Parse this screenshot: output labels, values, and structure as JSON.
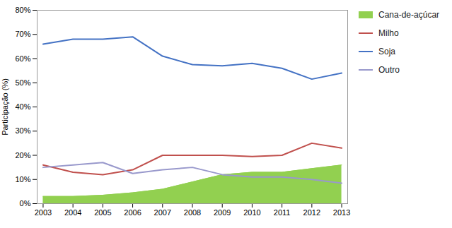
{
  "chart_data": {
    "type": "line",
    "ylabel": "Participação (%)",
    "x": [
      2003,
      2004,
      2005,
      2006,
      2007,
      2008,
      2009,
      2010,
      2011,
      2012,
      2013
    ],
    "series": [
      {
        "name": "Cana-de-açúcar",
        "type": "area",
        "color": "#92D050",
        "values": [
          3,
          3,
          3.5,
          4.5,
          6,
          9,
          12,
          13,
          13,
          14.5,
          16
        ]
      },
      {
        "name": "Milho",
        "type": "line",
        "color": "#C0504D",
        "values": [
          16,
          13,
          12,
          14,
          20,
          20,
          20,
          19.5,
          20,
          25,
          23
        ]
      },
      {
        "name": "Soja",
        "type": "line",
        "color": "#4472C4",
        "values": [
          66,
          68,
          68,
          69,
          61,
          57.5,
          57,
          58,
          56,
          51.5,
          54
        ]
      },
      {
        "name": "Outro",
        "type": "line",
        "color": "#9999CC",
        "values": [
          15,
          16,
          17,
          12.5,
          14,
          15,
          12,
          11,
          11,
          10,
          8.5
        ]
      }
    ],
    "xlim": [
      2002.8,
      2013.2
    ],
    "xticks": [
      2003,
      2004,
      2005,
      2006,
      2007,
      2008,
      2009,
      2010,
      2011,
      2012,
      2013
    ],
    "ylim": [
      0,
      80
    ],
    "yticks": [
      {
        "value": 0,
        "label": "0%"
      },
      {
        "value": 10,
        "label": "10%"
      },
      {
        "value": 20,
        "label": "20%"
      },
      {
        "value": 30,
        "label": "30%"
      },
      {
        "value": 40,
        "label": "40%"
      },
      {
        "value": 50,
        "label": "50%"
      },
      {
        "value": 60,
        "label": "60%"
      },
      {
        "value": 70,
        "label": "70%"
      },
      {
        "value": 80,
        "label": "80%"
      }
    ],
    "grid": false,
    "legend": "right"
  }
}
